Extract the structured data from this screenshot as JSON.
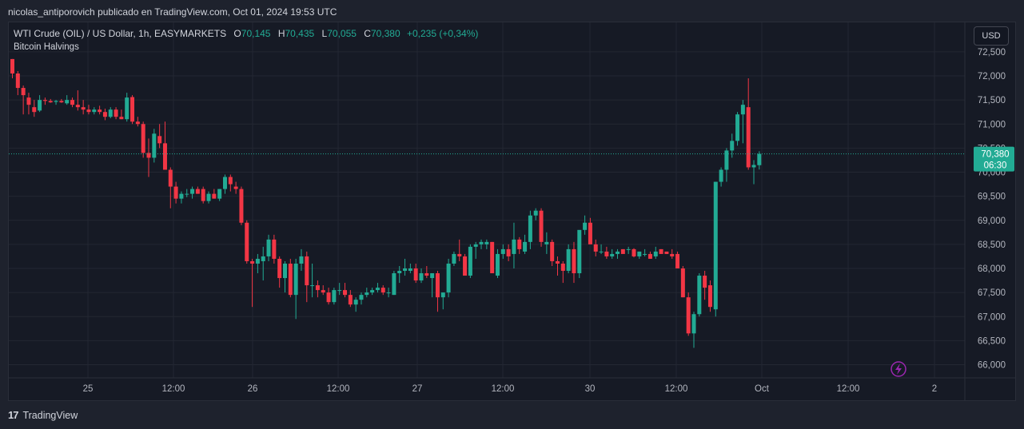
{
  "attribution": "nicolas_antiporovich publicado en TradingView.com, Oct 01, 2024 19:53 UTC",
  "legend": {
    "symbol": "WTI Crude (OIL) / US Dollar, 1h, EASYMARKETS",
    "o_label": "O",
    "o_value": "70,145",
    "h_label": "H",
    "h_value": "70,435",
    "l_label": "L",
    "l_value": "70,055",
    "c_label": "C",
    "c_value": "70,380",
    "change": "+0,235 (+0,34%)"
  },
  "indicator": "Bitcoin Halvings",
  "currency_button": "USD",
  "footer": {
    "brand": "TradingView",
    "logo_text": "17"
  },
  "colors": {
    "up": "#22ab94",
    "down": "#f23645",
    "background": "#161a25",
    "grid": "#232732",
    "text": "#b2b5be"
  },
  "chart_data": {
    "type": "candlestick",
    "interval": "1h",
    "price_axis": {
      "min": 65800,
      "max": 72700,
      "ticks": [
        72500,
        72000,
        71500,
        71000,
        70500,
        70000,
        69500,
        69000,
        68500,
        68000,
        67500,
        67000,
        66500,
        66000
      ]
    },
    "time_axis": [
      "25",
      "12:00",
      "26",
      "12:00",
      "27",
      "12:00",
      "30",
      "12:00",
      "Oct",
      "12:00",
      "2"
    ],
    "last_price": {
      "value": 70380,
      "label": "70,380",
      "countdown": "06:30"
    },
    "candles_ohlc": [
      [
        72350,
        72350,
        71950,
        72050
      ],
      [
        72050,
        72100,
        71600,
        71750
      ],
      [
        71750,
        71800,
        71200,
        71600
      ],
      [
        71550,
        71650,
        71200,
        71400
      ],
      [
        71350,
        71500,
        71150,
        71250
      ],
      [
        71280,
        71600,
        71250,
        71500
      ],
      [
        71500,
        71550,
        71400,
        71480
      ],
      [
        71480,
        71520,
        71440,
        71450
      ],
      [
        71460,
        71500,
        71400,
        71480
      ],
      [
        71480,
        71520,
        71440,
        71450
      ],
      [
        71430,
        71600,
        71400,
        71500
      ],
      [
        71500,
        71550,
        71350,
        71400
      ],
      [
        71400,
        71700,
        71280,
        71350
      ],
      [
        71350,
        71500,
        71200,
        71300
      ],
      [
        71300,
        71400,
        71200,
        71250
      ],
      [
        71250,
        71350,
        71200,
        71300
      ],
      [
        71300,
        71380,
        71200,
        71250
      ],
      [
        71250,
        71320,
        71080,
        71150
      ],
      [
        71150,
        71350,
        71120,
        71300
      ],
      [
        71300,
        71350,
        71100,
        71150
      ],
      [
        71150,
        71300,
        71100,
        71100
      ],
      [
        71100,
        71650,
        71050,
        71550
      ],
      [
        71560,
        71600,
        71000,
        71050
      ],
      [
        71050,
        71150,
        70950,
        71000
      ],
      [
        71000,
        71050,
        70300,
        70400
      ],
      [
        70400,
        70700,
        69900,
        70300
      ],
      [
        70300,
        70900,
        70200,
        70800
      ],
      [
        70750,
        71000,
        70500,
        70600
      ],
      [
        70600,
        71050,
        70100,
        70050
      ],
      [
        70050,
        70100,
        69250,
        69700
      ],
      [
        69700,
        69800,
        69350,
        69450
      ],
      [
        69450,
        69600,
        69350,
        69550
      ],
      [
        69550,
        69650,
        69480,
        69550
      ],
      [
        69550,
        69700,
        69450,
        69650
      ],
      [
        69650,
        69700,
        69550,
        69550
      ],
      [
        69650,
        69700,
        69350,
        69400
      ],
      [
        69400,
        69600,
        69350,
        69550
      ],
      [
        69550,
        69650,
        69450,
        69450
      ],
      [
        69450,
        69650,
        69400,
        69650
      ],
      [
        69650,
        69950,
        69550,
        69900
      ],
      [
        69900,
        69950,
        69600,
        69750
      ],
      [
        69700,
        69800,
        69550,
        69650
      ],
      [
        69650,
        69700,
        68900,
        68950
      ],
      [
        68950,
        69000,
        68100,
        68150
      ],
      [
        68150,
        68200,
        67200,
        68100
      ],
      [
        68100,
        68300,
        67900,
        68200
      ],
      [
        68150,
        68450,
        67750,
        68250
      ],
      [
        68250,
        68700,
        68150,
        68600
      ],
      [
        68600,
        68700,
        68100,
        68200
      ],
      [
        68200,
        68250,
        67600,
        67800
      ],
      [
        67800,
        68150,
        67500,
        68100
      ],
      [
        68100,
        68200,
        67400,
        67450
      ],
      [
        67450,
        68200,
        66950,
        68100
      ],
      [
        68100,
        68400,
        67950,
        68250
      ],
      [
        68250,
        68350,
        67300,
        67650
      ],
      [
        67650,
        68100,
        67400,
        67650
      ],
      [
        67650,
        67750,
        67400,
        67550
      ],
      [
        67550,
        67650,
        67450,
        67500
      ],
      [
        67500,
        67600,
        67250,
        67300
      ],
      [
        67300,
        67600,
        67250,
        67550
      ],
      [
        67550,
        67700,
        67450,
        67550
      ],
      [
        67550,
        67700,
        67400,
        67450
      ],
      [
        67450,
        67550,
        67200,
        67250
      ],
      [
        67250,
        67400,
        67100,
        67350
      ],
      [
        67350,
        67500,
        67250,
        67450
      ],
      [
        67450,
        67600,
        67400,
        67500
      ],
      [
        67500,
        67600,
        67450,
        67550
      ],
      [
        67550,
        67700,
        67500,
        67600
      ],
      [
        67600,
        67650,
        67450,
        67500
      ],
      [
        67500,
        67600,
        67400,
        67500
      ],
      [
        67450,
        67950,
        67450,
        67900
      ],
      [
        67900,
        68050,
        67700,
        67950
      ],
      [
        67950,
        68200,
        67850,
        68000
      ],
      [
        67950,
        68100,
        67900,
        68000
      ],
      [
        68000,
        68100,
        67700,
        67750
      ],
      [
        67750,
        68000,
        67700,
        67900
      ],
      [
        67900,
        68050,
        67800,
        67850
      ],
      [
        67800,
        67900,
        67400,
        67900
      ],
      [
        67900,
        67950,
        67100,
        67400
      ],
      [
        67400,
        67500,
        67150,
        67500
      ],
      [
        67500,
        68200,
        67400,
        68100
      ],
      [
        68100,
        68350,
        68050,
        68300
      ],
      [
        68300,
        68600,
        68150,
        68250
      ],
      [
        68250,
        68300,
        67900,
        67850
      ],
      [
        67850,
        68500,
        67800,
        68450
      ],
      [
        68450,
        68550,
        68200,
        68500
      ],
      [
        68500,
        68600,
        68400,
        68550
      ],
      [
        68500,
        68600,
        68400,
        68550
      ],
      [
        68550,
        68550,
        67950,
        67900
      ],
      [
        67850,
        68400,
        67800,
        68300
      ],
      [
        68300,
        68500,
        68200,
        68400
      ],
      [
        68400,
        68500,
        68150,
        68250
      ],
      [
        68300,
        68950,
        68000,
        68600
      ],
      [
        68600,
        68650,
        68300,
        68400
      ],
      [
        68350,
        68700,
        68300,
        68550
      ],
      [
        68550,
        69200,
        68400,
        69100
      ],
      [
        69100,
        69250,
        69000,
        69200
      ],
      [
        69200,
        69250,
        68450,
        68550
      ],
      [
        68500,
        68750,
        68300,
        68550
      ],
      [
        68550,
        68600,
        68050,
        68150
      ],
      [
        68150,
        68250,
        67850,
        68100
      ],
      [
        68100,
        68150,
        67700,
        67950
      ],
      [
        67950,
        68500,
        67900,
        68400
      ],
      [
        68400,
        68550,
        67700,
        67900
      ],
      [
        67900,
        68700,
        67800,
        68800
      ],
      [
        68800,
        69100,
        68700,
        68950
      ],
      [
        68950,
        69050,
        68550,
        68500
      ],
      [
        68500,
        68600,
        68250,
        68350
      ],
      [
        68350,
        68500,
        68300,
        68350
      ],
      [
        68350,
        68450,
        68200,
        68250
      ],
      [
        68250,
        68400,
        68200,
        68300
      ],
      [
        68300,
        68400,
        68200,
        68350
      ],
      [
        68400,
        68400,
        68350,
        68300
      ],
      [
        68400,
        68450,
        68300,
        68400
      ],
      [
        68400,
        68420,
        68230,
        68250
      ],
      [
        68250,
        68350,
        68200,
        68350
      ],
      [
        68300,
        68400,
        68250,
        68300
      ],
      [
        68300,
        68350,
        68200,
        68200
      ],
      [
        68250,
        68450,
        68200,
        68350
      ],
      [
        68400,
        68400,
        68350,
        68300
      ],
      [
        68350,
        68350,
        68300,
        68300
      ],
      [
        68300,
        68400,
        68200,
        68250
      ],
      [
        68300,
        68350,
        68000,
        68000
      ],
      [
        68000,
        68050,
        67400,
        67400
      ],
      [
        67400,
        67500,
        66600,
        66650
      ],
      [
        66650,
        67100,
        66350,
        67050
      ],
      [
        67050,
        67900,
        67000,
        67850
      ],
      [
        67850,
        67950,
        67350,
        67600
      ],
      [
        67650,
        67750,
        67100,
        67200
      ],
      [
        67150,
        69800,
        67000,
        69800
      ],
      [
        69800,
        70100,
        69700,
        70050
      ],
      [
        70050,
        70500,
        69800,
        70450
      ],
      [
        70450,
        70800,
        70300,
        70650
      ],
      [
        70650,
        71250,
        70550,
        71200
      ],
      [
        71200,
        71500,
        70600,
        71400
      ],
      [
        71350,
        71950,
        70050,
        70100
      ],
      [
        70100,
        70250,
        69750,
        70150
      ],
      [
        70145,
        70435,
        70055,
        70380
      ]
    ]
  }
}
